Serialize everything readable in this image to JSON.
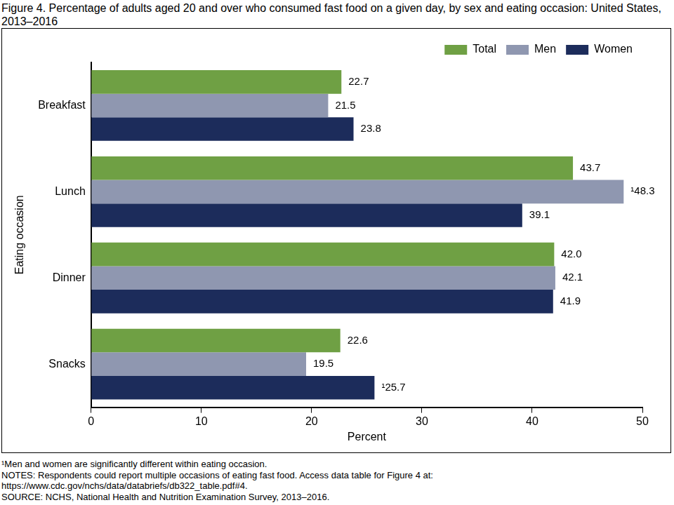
{
  "chart_data": {
    "type": "bar",
    "orientation": "horizontal",
    "title": "Figure 4. Percentage of adults aged 20 and over who consumed fast food on a given day, by sex and eating occasion: United States, 2013–2016",
    "x_label": "Percent",
    "y_label": "Eating occasion",
    "categories": [
      "Breakfast",
      "Lunch",
      "Dinner",
      "Snacks"
    ],
    "series": [
      {
        "name": "Total",
        "color": "#6fa044",
        "values": [
          22.7,
          43.7,
          42.0,
          22.6
        ],
        "value_labels": [
          "22.7",
          "43.7",
          "42.0",
          "22.6"
        ]
      },
      {
        "name": "Men",
        "color": "#8f97b0",
        "values": [
          21.5,
          48.3,
          42.1,
          19.5
        ],
        "value_labels": [
          "21.5",
          "¹48.3",
          "42.1",
          "19.5"
        ]
      },
      {
        "name": "Women",
        "color": "#1c2c5b",
        "values": [
          23.8,
          39.1,
          41.9,
          25.7
        ],
        "value_labels": [
          "23.8",
          "39.1",
          "41.9",
          "¹25.7"
        ]
      }
    ],
    "xlim": [
      0,
      50
    ],
    "xticks": [
      0,
      10,
      20,
      30,
      40,
      50
    ],
    "grid": false,
    "legend": "upper right",
    "data_labels": true,
    "footnotes": [
      "¹Men and women are significantly different within eating occasion.",
      "NOTES: Respondents could report multiple occasions of eating fast food. Access data table for Figure 4 at:",
      "https://www.cdc.gov/nchs/data/databriefs/db322_table.pdf#4.",
      "SOURCE: NCHS, National Health and Nutrition Examination Survey, 2013–2016."
    ]
  }
}
